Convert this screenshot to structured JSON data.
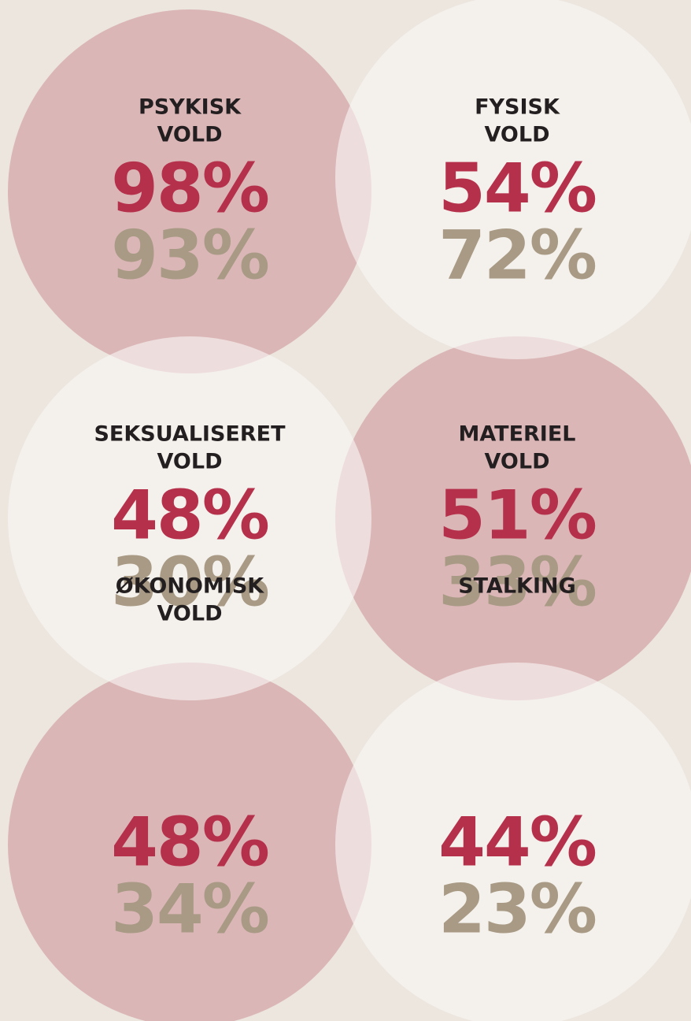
{
  "items": [
    {
      "label_lines": [
        "PSYKISK",
        "VOLD"
      ],
      "values": [
        "98%",
        "93%"
      ]
    },
    {
      "label_lines": [
        "FYSISK",
        "VOLD"
      ],
      "values": [
        "54%",
        "72%"
      ]
    },
    {
      "label_lines": [
        "SEKSUALISERET",
        "VOLD"
      ],
      "values": [
        "48%",
        "30%"
      ]
    },
    {
      "label_lines": [
        "MATERIEL",
        "VOLD"
      ],
      "values": [
        "51%",
        "33%"
      ]
    },
    {
      "label_lines": [
        "ØKONOMISK",
        "VOLD"
      ],
      "values": [
        "48%",
        "34%"
      ]
    },
    {
      "label_lines": [
        "STALKING"
      ],
      "values": [
        "44%",
        "23%"
      ]
    }
  ]
}
